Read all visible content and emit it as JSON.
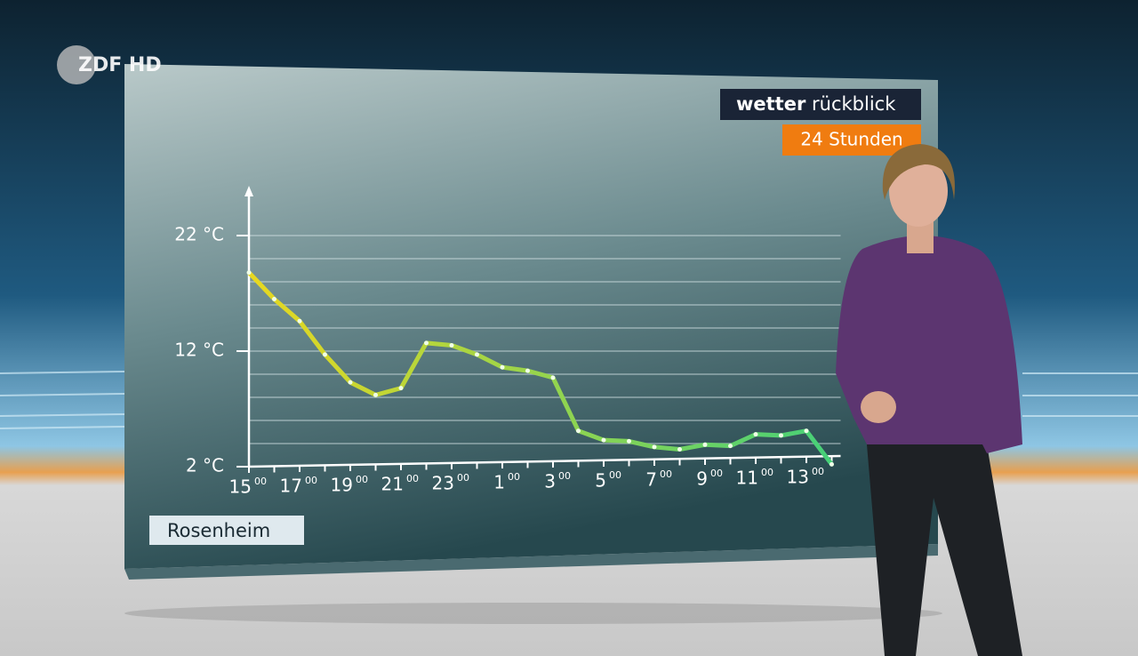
{
  "channel_logo": "ZDF HD",
  "banner": {
    "title_bold": "wetter",
    "title_light": "rückblick",
    "subtitle": "24 Stunden"
  },
  "chart_data": {
    "type": "line",
    "location": "Rosenheim",
    "categories": [
      "15",
      null,
      "17",
      null,
      "19",
      null,
      "21",
      null,
      "23",
      null,
      "1",
      null,
      "3",
      null,
      "5",
      null,
      "7",
      null,
      "9",
      null,
      "11",
      null,
      "13",
      null
    ],
    "x_label_superscript": "00",
    "values": [
      18.8,
      16.5,
      14.6,
      11.7,
      9.3,
      8.2,
      8.8,
      12.7,
      12.5,
      11.7,
      10.6,
      10.3,
      9.7,
      5.1,
      4.3,
      4.2,
      3.7,
      3.5,
      3.9,
      3.8,
      4.8,
      4.7,
      5.1,
      2.2
    ],
    "colors": [
      "#e8d820",
      "#3fd07c"
    ],
    "ylim": [
      2,
      26
    ],
    "yticks": [
      {
        "value": 2,
        "label": "2 °C"
      },
      {
        "value": 12,
        "label": "12 °C"
      },
      {
        "value": 22,
        "label": "22 °C"
      }
    ],
    "minor_yticks": [
      4,
      6,
      8,
      10,
      14,
      16,
      18,
      20
    ],
    "grid": true
  }
}
